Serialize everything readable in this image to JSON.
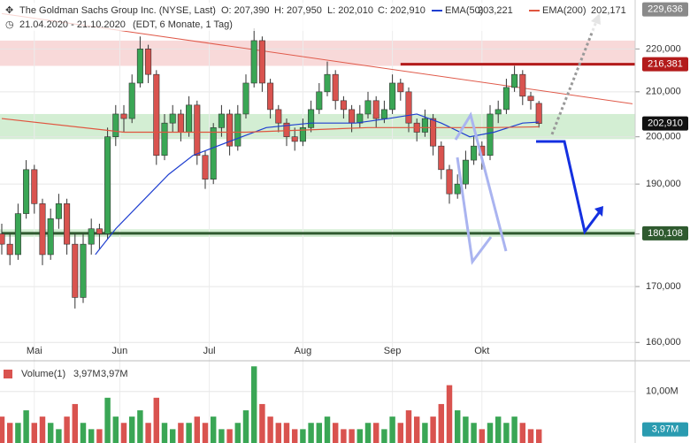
{
  "chart_data": {
    "type": "candlestick",
    "title": "The Goldman Sachs Group Inc. (NYSE, Last)",
    "header_values": [
      "O: 207,390",
      "H: 207,950",
      "L: 202,010",
      "C: 202,910"
    ],
    "subtitle": "21.04.2020 - 21.10.2020",
    "subtitle_note": "(EDT, 6 Monate, 1 Tag)",
    "log_scale": true,
    "grid": true,
    "up_color": "#3aa655",
    "down_color": "#d9534f",
    "xlim": [
      0,
      155
    ],
    "xticks": [
      {
        "value": 8,
        "label": "Mai"
      },
      {
        "value": 29,
        "label": "Jun"
      },
      {
        "value": 51,
        "label": "Jul"
      },
      {
        "value": 74,
        "label": "Aug"
      },
      {
        "value": 96,
        "label": "Sep"
      },
      {
        "value": 118,
        "label": "Okt"
      }
    ],
    "ylim": [
      157,
      232
    ],
    "yticks": [
      {
        "value": 160,
        "label": "160,000"
      },
      {
        "value": 170,
        "label": "170,000"
      },
      {
        "value": 180,
        "label": "180,000"
      },
      {
        "value": 190,
        "label": "190,000"
      },
      {
        "value": 200,
        "label": "200,000"
      },
      {
        "value": 210,
        "label": "210,000"
      },
      {
        "value": 220,
        "label": "220,000"
      }
    ],
    "x": [
      0,
      2,
      4,
      6,
      8,
      10,
      12,
      14,
      16,
      18,
      20,
      22,
      24,
      26,
      28,
      30,
      32,
      34,
      36,
      38,
      40,
      42,
      44,
      46,
      48,
      50,
      52,
      54,
      56,
      58,
      60,
      62,
      64,
      66,
      68,
      70,
      72,
      74,
      76,
      78,
      80,
      82,
      84,
      86,
      88,
      90,
      92,
      94,
      96,
      98,
      100,
      102,
      104,
      106,
      108,
      110,
      112,
      114,
      116,
      118,
      120,
      122,
      124,
      126,
      128,
      130,
      132
    ],
    "ohlc": [
      [
        180,
        182,
        176,
        178
      ],
      [
        178,
        180,
        174,
        176
      ],
      [
        176,
        186,
        175,
        184
      ],
      [
        184,
        195,
        183,
        193
      ],
      [
        193,
        194,
        184,
        186
      ],
      [
        186,
        187,
        174,
        176
      ],
      [
        176,
        185,
        175,
        183
      ],
      [
        183,
        188,
        181,
        186
      ],
      [
        186,
        187,
        176,
        178
      ],
      [
        178,
        180,
        166,
        168
      ],
      [
        168,
        180,
        167,
        178
      ],
      [
        178,
        183,
        176,
        181
      ],
      [
        181,
        182,
        177,
        180
      ],
      [
        180,
        202,
        179,
        200
      ],
      [
        200,
        207,
        198,
        205
      ],
      [
        205,
        207,
        201,
        204
      ],
      [
        204,
        214,
        203,
        212
      ],
      [
        212,
        223,
        211,
        220
      ],
      [
        220,
        221,
        212,
        214
      ],
      [
        214,
        215,
        194,
        196
      ],
      [
        196,
        205,
        195,
        203
      ],
      [
        203,
        207,
        201,
        205
      ],
      [
        205,
        206,
        199,
        201
      ],
      [
        201,
        209,
        200,
        207
      ],
      [
        207,
        208,
        194,
        196
      ],
      [
        196,
        197,
        189,
        191
      ],
      [
        191,
        203,
        190,
        202
      ],
      [
        202,
        207,
        200,
        205
      ],
      [
        205,
        206,
        196,
        198
      ],
      [
        198,
        207,
        197,
        205
      ],
      [
        205,
        214,
        204,
        212
      ],
      [
        212,
        225,
        211,
        222
      ],
      [
        222,
        223,
        210,
        212
      ],
      [
        212,
        213,
        204,
        206
      ],
      [
        206,
        207,
        201,
        203
      ],
      [
        203,
        204,
        198,
        200
      ],
      [
        200,
        202,
        197,
        199
      ],
      [
        199,
        204,
        198,
        202
      ],
      [
        202,
        208,
        201,
        206
      ],
      [
        206,
        212,
        205,
        210
      ],
      [
        210,
        217,
        209,
        214
      ],
      [
        214,
        215,
        206,
        208
      ],
      [
        208,
        209,
        204,
        206
      ],
      [
        206,
        207,
        201,
        203
      ],
      [
        203,
        207,
        202,
        205
      ],
      [
        205,
        210,
        204,
        208
      ],
      [
        208,
        209,
        202,
        204
      ],
      [
        204,
        208,
        203,
        206
      ],
      [
        206,
        214,
        205,
        212
      ],
      [
        212,
        213,
        208,
        210
      ],
      [
        210,
        211,
        201,
        203
      ],
      [
        203,
        204,
        199,
        201
      ],
      [
        201,
        206,
        200,
        204
      ],
      [
        204,
        205,
        196,
        198
      ],
      [
        198,
        199,
        191,
        193
      ],
      [
        193,
        194,
        186,
        188
      ],
      [
        188,
        192,
        187,
        190
      ],
      [
        190,
        197,
        189,
        195
      ],
      [
        195,
        200,
        194,
        198
      ],
      [
        198,
        199,
        193,
        196
      ],
      [
        196,
        207,
        195,
        205
      ],
      [
        205,
        208,
        203,
        206
      ],
      [
        206,
        213,
        205,
        211
      ],
      [
        211,
        216,
        210,
        214
      ],
      [
        214,
        215,
        207,
        209
      ],
      [
        209,
        210,
        206,
        208
      ],
      [
        207.39,
        207.95,
        202.01,
        202.91
      ]
    ],
    "series": [
      {
        "name": "EMA(50)",
        "color": "#1f3fd0",
        "value_label": "203,221",
        "x": [
          23,
          28,
          34,
          41,
          47,
          56,
          65,
          76,
          87,
          95,
          102,
          108,
          115,
          121,
          128,
          132
        ],
        "values": [
          176,
          181,
          186,
          192,
          196,
          199,
          202,
          203,
          203,
          204,
          205,
          203,
          200,
          201,
          203,
          203.221
        ]
      },
      {
        "name": "EMA(200)",
        "color": "#e0553f",
        "value_label": "202,171",
        "x": [
          0,
          30,
          60,
          90,
          120,
          132
        ],
        "values": [
          204,
          201,
          201,
          202,
          202,
          202.171
        ]
      }
    ],
    "trendline": {
      "color": "#e05a4a",
      "x": [
        0,
        155
      ],
      "values": [
        228.6,
        207.3
      ]
    },
    "zones": [
      {
        "range": [
          216,
          222
        ],
        "color": "rgba(230,120,120,0.28)"
      },
      {
        "range": [
          199.5,
          205
        ],
        "color": "rgba(110,200,110,0.3)"
      },
      {
        "range": [
          179.4,
          180.9
        ],
        "color": "rgba(110,200,110,0.3)"
      }
    ],
    "levels": [
      {
        "value": 229.636,
        "label": "229,636",
        "color": "#8a8a8a",
        "from": null
      },
      {
        "value": 216.381,
        "label": "216,381",
        "color": "#b31b1b",
        "from": 98
      },
      {
        "value": 202.91,
        "label": "202,910",
        "color": "#111111",
        "from": null
      },
      {
        "value": 180.108,
        "label": "180,108",
        "color": "#2f5a2f",
        "from": 0
      }
    ],
    "volume": {
      "name": "Volume(1)",
      "legend_value": "3,97M",
      "legend_value_2": "3,97M",
      "last_label": "3,97M",
      "vlim": [
        1.8,
        13.9
      ],
      "vticks": [
        {
          "value": 10,
          "label": "10,00M"
        }
      ],
      "values": [
        6,
        5,
        5,
        7,
        5,
        6,
        5,
        4,
        6,
        8,
        5,
        4,
        4,
        9,
        6,
        5,
        6,
        7,
        5,
        9,
        5,
        4,
        5,
        5,
        6,
        5,
        6,
        4,
        4,
        5,
        7,
        14,
        8,
        6,
        5,
        5,
        4,
        4,
        5,
        5,
        6,
        5,
        4,
        4,
        4,
        5,
        5,
        4,
        6,
        5,
        7,
        6,
        5,
        6,
        8,
        11,
        7,
        6,
        5,
        4,
        5,
        6,
        5,
        6,
        5,
        4,
        3.97
      ]
    }
  }
}
